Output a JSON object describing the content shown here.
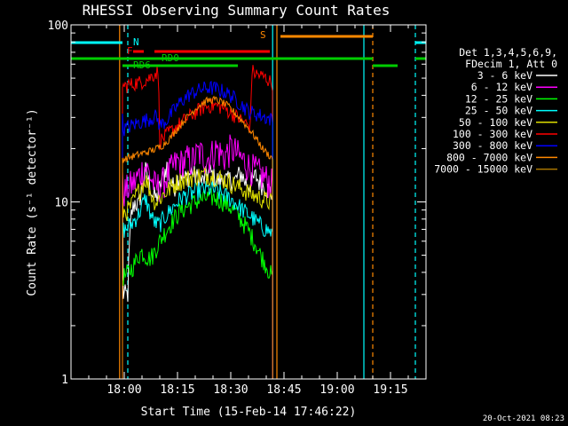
{
  "chart_data": {
    "type": "line",
    "title": "RHESSI Observing Summary Count Rates",
    "xlabel": "Start Time (15-Feb-14 17:46:22)",
    "ylabel": "Count Rate (s⁻¹ detector⁻¹)",
    "yscale": "log",
    "ylim": [
      1,
      100
    ],
    "xlim_minutes": [
      -15,
      85
    ],
    "x_ticks": [
      {
        "label": "18:00",
        "t": 0
      },
      {
        "label": "18:15",
        "t": 15
      },
      {
        "label": "18:30",
        "t": 30
      },
      {
        "label": "18:45",
        "t": 45
      },
      {
        "label": "19:00",
        "t": 60
      },
      {
        "label": "19:15",
        "t": 75
      }
    ],
    "y_ticks": [
      {
        "label": "1",
        "v": 1
      },
      {
        "label": "10",
        "v": 10
      },
      {
        "label": "100",
        "v": 100
      }
    ],
    "legend_header": [
      "Det 1,3,4,5,6,9,",
      "FDecim 1, Att 0"
    ],
    "legend_placement": "right",
    "timestamp": "20-Oct-2021 08:23",
    "series": [
      {
        "name": "3 - 6 keV",
        "color": "#ffffff",
        "x": [
          -0.5,
          0.5,
          1,
          2,
          3,
          4,
          5,
          6,
          7,
          8,
          9,
          10,
          11,
          12,
          13,
          14,
          15,
          16,
          17,
          18,
          19,
          20,
          21,
          22,
          23,
          24,
          25,
          26,
          27,
          28,
          29,
          30,
          31,
          32,
          33,
          34,
          35,
          36,
          37,
          38,
          39,
          40,
          41,
          41.8
        ],
        "y": [
          3.0,
          3.0,
          3.0,
          8.5,
          10.0,
          9.5,
          12.0,
          15.0,
          13.0,
          11.0,
          10.5,
          12.0,
          14.0,
          16.0,
          13.0,
          12.0,
          13.5,
          14.5,
          13.5,
          14.0,
          15.0,
          14.0,
          13.5,
          13.0,
          14.0,
          15.0,
          14.0,
          13.5,
          13.0,
          14.0,
          13.0,
          13.5,
          13.0,
          14.0,
          14.5,
          13.0,
          12.5,
          13.0,
          14.0,
          13.0,
          12.5,
          12.0,
          11.5,
          11.0
        ]
      },
      {
        "name": "6 - 12 keV",
        "color": "#ff00ff",
        "x": [
          -0.5,
          0.5,
          1,
          2,
          3,
          4,
          5,
          6,
          7,
          8,
          9,
          10,
          11,
          12,
          13,
          14,
          15,
          16,
          17,
          18,
          19,
          20,
          21,
          22,
          23,
          24,
          25,
          26,
          27,
          28,
          29,
          30,
          31,
          32,
          33,
          34,
          35,
          36,
          37,
          38,
          39,
          40,
          41,
          41.8
        ],
        "y": [
          11.5,
          11.5,
          12.0,
          12.5,
          13.0,
          14.0,
          15.0,
          16.0,
          14.5,
          13.0,
          12.0,
          12.5,
          13.0,
          14.0,
          15.0,
          16.0,
          17.0,
          16.5,
          17.0,
          17.5,
          17.0,
          18.0,
          19.0,
          18.5,
          17.5,
          18.0,
          19.0,
          20.0,
          19.0,
          18.0,
          19.0,
          20.0,
          19.5,
          18.5,
          17.5,
          17.0,
          16.0,
          15.5,
          15.0,
          14.5,
          14.0,
          13.5,
          13.0,
          12.5
        ]
      },
      {
        "name": "12 - 25 keV",
        "color": "#00ff00",
        "x": [
          -0.5,
          0.5,
          1,
          2,
          3,
          4,
          5,
          6,
          7,
          8,
          9,
          10,
          11,
          12,
          13,
          14,
          15,
          16,
          17,
          18,
          19,
          20,
          21,
          22,
          23,
          24,
          25,
          26,
          27,
          28,
          29,
          30,
          31,
          32,
          33,
          34,
          35,
          36,
          37,
          38,
          39,
          40,
          41,
          41.8
        ],
        "y": [
          3.8,
          3.8,
          4.0,
          4.2,
          4.5,
          5.0,
          5.2,
          5.0,
          4.8,
          5.0,
          5.5,
          6.0,
          6.5,
          7.0,
          7.5,
          8.0,
          8.5,
          9.0,
          9.2,
          9.5,
          9.8,
          10.0,
          10.2,
          10.4,
          10.5,
          10.6,
          10.6,
          10.5,
          10.3,
          10.0,
          9.7,
          9.3,
          8.9,
          8.4,
          7.9,
          7.4,
          6.9,
          6.3,
          5.8,
          5.2,
          4.8,
          4.4,
          4.0,
          3.7
        ]
      },
      {
        "name": "25 - 50 keV",
        "color": "#00ffff",
        "x": [
          -0.5,
          0.5,
          1,
          2,
          3,
          4,
          5,
          6,
          7,
          8,
          9,
          10,
          11,
          12,
          13,
          14,
          15,
          16,
          17,
          18,
          19,
          20,
          21,
          22,
          23,
          24,
          25,
          26,
          27,
          28,
          29,
          30,
          31,
          32,
          33,
          34,
          35,
          36,
          37,
          38,
          39,
          40,
          41,
          41.8
        ],
        "y": [
          7.0,
          7.0,
          7.2,
          7.5,
          8.0,
          8.5,
          9.5,
          10.5,
          9.0,
          8.0,
          7.5,
          7.5,
          8.0,
          8.5,
          9.0,
          9.5,
          10.0,
          10.5,
          10.8,
          11.0,
          11.2,
          11.4,
          11.6,
          11.7,
          11.8,
          11.8,
          11.7,
          11.5,
          11.2,
          11.0,
          10.7,
          10.4,
          10.0,
          9.6,
          9.2,
          8.8,
          8.5,
          8.2,
          7.8,
          7.5,
          7.2,
          7.0,
          6.8,
          6.6
        ]
      },
      {
        "name": "50 - 100 keV",
        "color": "#dddd00",
        "x": [
          -0.5,
          0.5,
          1,
          2,
          3,
          4,
          5,
          6,
          7,
          8,
          9,
          10,
          11,
          12,
          13,
          14,
          15,
          16,
          17,
          18,
          19,
          20,
          21,
          22,
          23,
          24,
          25,
          26,
          27,
          28,
          29,
          30,
          31,
          32,
          33,
          34,
          35,
          36,
          37,
          38,
          39,
          40,
          41,
          41.8
        ],
        "y": [
          8.8,
          8.8,
          9.0,
          9.5,
          10.5,
          11.5,
          12.5,
          13.5,
          12.0,
          10.5,
          10.0,
          10.5,
          11.0,
          11.5,
          12.0,
          12.5,
          13.0,
          13.2,
          13.4,
          13.6,
          13.8,
          14.0,
          14.1,
          14.2,
          14.2,
          14.2,
          14.1,
          13.9,
          13.7,
          13.4,
          13.1,
          12.8,
          12.5,
          12.2,
          11.9,
          11.6,
          11.3,
          11.0,
          10.8,
          10.6,
          10.4,
          10.2,
          10.0,
          9.8
        ]
      },
      {
        "name": "100 - 300 keV",
        "color": "#ff0000",
        "x": [
          -0.5,
          0.5,
          1,
          2,
          3,
          4,
          5,
          6,
          7,
          8,
          9,
          9.5,
          10,
          11,
          12,
          13,
          14,
          15,
          16,
          17,
          18,
          19,
          20,
          21,
          22,
          23,
          24,
          25,
          26,
          27,
          28,
          29,
          30,
          31,
          32,
          33,
          34,
          35,
          35.5,
          36,
          37,
          38,
          39,
          40,
          41,
          41.8
        ],
        "y": [
          45.0,
          45.0,
          46.0,
          46.0,
          47.0,
          47.0,
          48.0,
          49.0,
          50.0,
          52.0,
          54.0,
          55.0,
          22.0,
          23.0,
          24.0,
          25.0,
          26.0,
          27.0,
          28.0,
          29.0,
          30.0,
          31.0,
          32.0,
          33.0,
          34.0,
          34.5,
          35.0,
          35.0,
          35.0,
          34.5,
          34.0,
          33.0,
          32.0,
          31.0,
          30.0,
          29.0,
          28.0,
          27.0,
          26.5,
          55.0,
          53.0,
          52.0,
          51.0,
          50.0,
          48.0,
          47.0
        ]
      },
      {
        "name": "300 - 800 keV",
        "color": "#0000ff",
        "x": [
          -0.5,
          0.5,
          1,
          2,
          3,
          4,
          5,
          6,
          7,
          8,
          9,
          10,
          11,
          12,
          13,
          14,
          15,
          16,
          17,
          18,
          19,
          20,
          21,
          22,
          23,
          24,
          25,
          26,
          27,
          28,
          29,
          30,
          31,
          32,
          33,
          34,
          35,
          36,
          37,
          38,
          39,
          40,
          41,
          41.8
        ],
        "y": [
          26.0,
          26.0,
          26.5,
          27.0,
          27.5,
          28.0,
          28.5,
          29.0,
          29.5,
          30.0,
          30.5,
          27.0,
          28.0,
          29.0,
          31.0,
          33.0,
          35.0,
          37.0,
          38.5,
          40.0,
          41.0,
          42.0,
          42.8,
          43.5,
          44.0,
          44.2,
          44.0,
          43.5,
          42.8,
          42.0,
          41.0,
          40.0,
          38.5,
          37.0,
          35.5,
          34.0,
          32.5,
          32.0,
          31.5,
          31.0,
          30.5,
          30.0,
          29.5,
          29.0
        ]
      },
      {
        "name": "800 - 7000 keV",
        "color": "#ff8800",
        "x": [
          -0.5,
          0.5,
          1,
          2,
          3,
          4,
          5,
          6,
          7,
          8,
          9,
          10,
          11,
          12,
          13,
          14,
          15,
          16,
          17,
          18,
          19,
          20,
          21,
          22,
          23,
          24,
          25,
          26,
          27,
          28,
          29,
          30,
          31,
          32,
          33,
          34,
          35,
          36,
          37,
          38,
          39,
          40,
          41,
          41.8
        ],
        "y": [
          17.5,
          17.5,
          17.8,
          18.0,
          18.2,
          18.5,
          18.8,
          19.0,
          19.3,
          19.6,
          20.0,
          20.5,
          21.0,
          22.0,
          23.0,
          24.5,
          26.0,
          27.5,
          29.0,
          30.5,
          32.0,
          33.5,
          35.0,
          36.0,
          37.0,
          37.5,
          37.8,
          37.5,
          37.0,
          36.0,
          35.0,
          33.5,
          32.0,
          30.5,
          29.0,
          27.5,
          26.0,
          24.5,
          23.0,
          21.5,
          20.0,
          19.0,
          18.2,
          17.5
        ]
      },
      {
        "name": "7000 - 15000 keV",
        "color": "#aa7700",
        "x": [],
        "y": []
      }
    ],
    "flags": [
      {
        "label": "N",
        "color": "#00ffff",
        "segments": [
          [
            -15,
            -0.5
          ],
          [
            82,
            85
          ]
        ]
      },
      {
        "label": "S",
        "color": "#ff8800",
        "segments": [
          [
            44,
            70
          ]
        ]
      },
      {
        "label": "F",
        "color": "#ff0000",
        "segments": [
          [
            2.5,
            5.5
          ],
          [
            8.5,
            41
          ]
        ]
      },
      {
        "label": "RD0",
        "color": "#00cc00",
        "segments": [
          [
            -15,
            70
          ],
          [
            82,
            85
          ]
        ]
      },
      {
        "label": "RD6",
        "color": "#00cc00",
        "segments": [
          [
            -0.5,
            32
          ],
          [
            70,
            77
          ]
        ]
      }
    ],
    "vlines": [
      {
        "t": -1.3,
        "style": "solid",
        "color": "#ff8800"
      },
      {
        "t": 1.0,
        "style": "dashed",
        "color": "#00ffff"
      },
      {
        "t": 43.0,
        "style": "solid",
        "color": "#ff8800"
      },
      {
        "t": 41.8,
        "style": "solid",
        "color": "#00ffff"
      },
      {
        "t": 67.5,
        "style": "solid",
        "color": "#00ffff"
      },
      {
        "t": 70.0,
        "style": "dashed",
        "color": "#ff8800"
      },
      {
        "t": 82.0,
        "style": "dashed",
        "color": "#00ffff"
      }
    ]
  }
}
